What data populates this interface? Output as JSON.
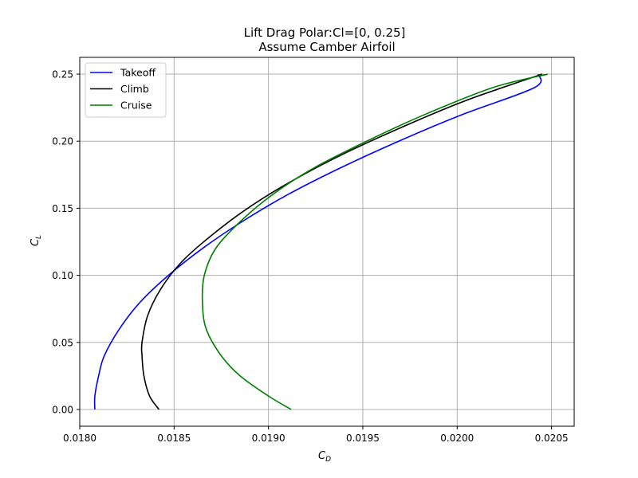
{
  "chart_data": {
    "type": "line",
    "title": "Lift Drag Polar:Cl=[0, 0.25]",
    "subtitle": "Assume Camber Airfoil",
    "xlabel": {
      "main": "C",
      "sub": "D"
    },
    "ylabel": {
      "main": "C",
      "sub": "L"
    },
    "xlim": [
      0.018,
      0.02062
    ],
    "ylim": [
      -0.0125,
      0.2625
    ],
    "xticks": [
      0.018,
      0.0185,
      0.019,
      0.0195,
      0.02,
      0.0205
    ],
    "xtick_labels": [
      "0.0180",
      "0.0185",
      "0.0190",
      "0.0195",
      "0.0200",
      "0.0205"
    ],
    "yticks": [
      0.0,
      0.05,
      0.1,
      0.15,
      0.2,
      0.25
    ],
    "ytick_labels": [
      "0.00",
      "0.05",
      "0.10",
      "0.15",
      "0.20",
      "0.25"
    ],
    "grid": true,
    "legend_position": "top-left",
    "series": [
      {
        "name": "Takeoff",
        "color": "#0000ff",
        "points": [
          [
            0.01808,
            0.0
          ],
          [
            0.01808,
            0.01
          ],
          [
            0.0181,
            0.025
          ],
          [
            0.01813,
            0.04
          ],
          [
            0.01821,
            0.06
          ],
          [
            0.01832,
            0.08
          ],
          [
            0.01847,
            0.1
          ],
          [
            0.01865,
            0.12
          ],
          [
            0.01886,
            0.14
          ],
          [
            0.0191,
            0.16
          ],
          [
            0.01938,
            0.18
          ],
          [
            0.01969,
            0.2
          ],
          [
            0.02003,
            0.22
          ],
          [
            0.02041,
            0.24
          ],
          [
            0.02043,
            0.25
          ]
        ]
      },
      {
        "name": "Climb",
        "color": "#000000",
        "points": [
          [
            0.01842,
            0.0
          ],
          [
            0.01837,
            0.01
          ],
          [
            0.01834,
            0.025
          ],
          [
            0.01833,
            0.04
          ],
          [
            0.01833,
            0.05
          ],
          [
            0.01836,
            0.07
          ],
          [
            0.01843,
            0.09
          ],
          [
            0.01854,
            0.11
          ],
          [
            0.0187,
            0.13
          ],
          [
            0.01889,
            0.15
          ],
          [
            0.01912,
            0.17
          ],
          [
            0.01939,
            0.19
          ],
          [
            0.0197,
            0.21
          ],
          [
            0.02004,
            0.23
          ],
          [
            0.02045,
            0.25
          ]
        ]
      },
      {
        "name": "Cruise",
        "color": "#008000",
        "points": [
          [
            0.01912,
            0.0
          ],
          [
            0.019,
            0.01
          ],
          [
            0.01885,
            0.025
          ],
          [
            0.01875,
            0.04
          ],
          [
            0.01867,
            0.06
          ],
          [
            0.01865,
            0.08
          ],
          [
            0.01866,
            0.1
          ],
          [
            0.01872,
            0.12
          ],
          [
            0.01885,
            0.14
          ],
          [
            0.01902,
            0.16
          ],
          [
            0.01924,
            0.18
          ],
          [
            0.01952,
            0.2
          ],
          [
            0.01983,
            0.22
          ],
          [
            0.02019,
            0.24
          ],
          [
            0.02048,
            0.25
          ]
        ]
      }
    ]
  }
}
